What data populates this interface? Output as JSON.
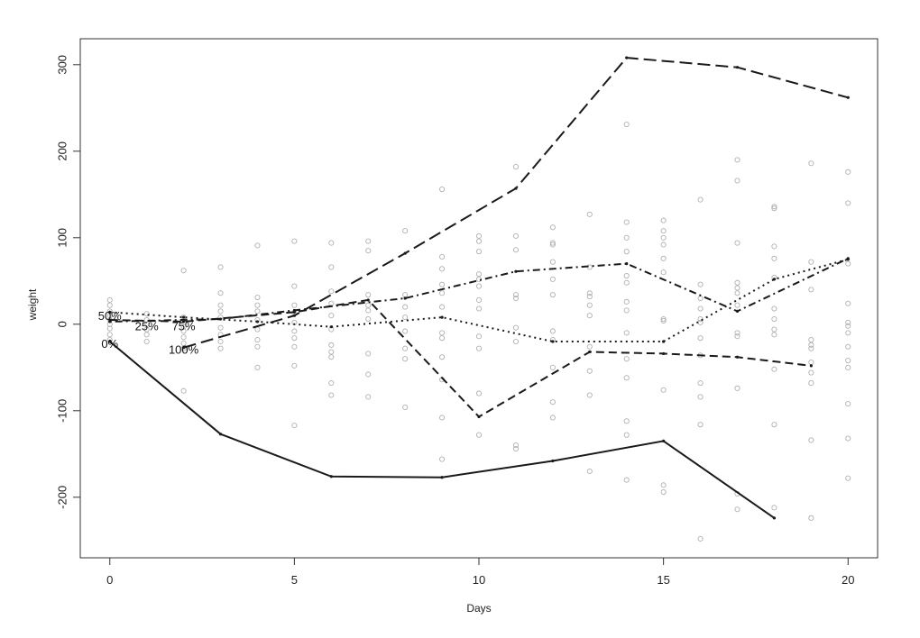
{
  "chart_data": {
    "type": "line",
    "title": "",
    "xlabel": "Days",
    "ylabel": "weight",
    "xlim": [
      -0.8,
      20.8
    ],
    "ylim": [
      -270,
      330
    ],
    "x_ticks": [
      0,
      5,
      10,
      15,
      20
    ],
    "y_ticks": [
      -200,
      -100,
      0,
      100,
      200,
      300
    ],
    "grid": false,
    "series": [
      {
        "name": "0%",
        "dash": "solid",
        "label_at": [
          0,
          -22
        ],
        "points": [
          [
            0,
            -20
          ],
          [
            3,
            -127
          ],
          [
            6,
            -176
          ],
          [
            9,
            -177
          ],
          [
            12,
            -158
          ],
          [
            15,
            -135
          ],
          [
            18,
            -224
          ]
        ]
      },
      {
        "name": "25%",
        "dash": "dash",
        "label_at": [
          1,
          -2
        ],
        "points": [
          [
            0,
            5
          ],
          [
            2,
            3
          ],
          [
            5,
            14
          ],
          [
            7,
            28
          ],
          [
            10,
            -107
          ],
          [
            13,
            -32
          ],
          [
            15,
            -34
          ],
          [
            17,
            -38
          ],
          [
            19,
            -48
          ]
        ]
      },
      {
        "name": "50%",
        "dash": "dot",
        "label_at": [
          0,
          10
        ],
        "points": [
          [
            0,
            14
          ],
          [
            2,
            8
          ],
          [
            4,
            3
          ],
          [
            6,
            -3
          ],
          [
            9,
            8
          ],
          [
            12,
            -20
          ],
          [
            15,
            -20
          ],
          [
            18,
            52
          ],
          [
            20,
            75
          ]
        ]
      },
      {
        "name": "75%",
        "dash": "dotdash",
        "label_at": [
          2,
          -2
        ],
        "points": [
          [
            0,
            3
          ],
          [
            3,
            6
          ],
          [
            5,
            16
          ],
          [
            8,
            30
          ],
          [
            11,
            61
          ],
          [
            14,
            70
          ],
          [
            17,
            15
          ],
          [
            20,
            76
          ]
        ]
      },
      {
        "name": "100%",
        "dash": "longdash",
        "label_at": [
          2,
          -29
        ],
        "points": [
          [
            2,
            -27
          ],
          [
            5,
            10
          ],
          [
            8,
            82
          ],
          [
            11,
            157
          ],
          [
            14,
            308
          ],
          [
            17,
            297
          ],
          [
            20,
            262
          ]
        ]
      }
    ],
    "scatter": {
      "color": "#b0b0b0",
      "points": [
        [
          0,
          28
        ],
        [
          0,
          22
        ],
        [
          0,
          15
        ],
        [
          0,
          10
        ],
        [
          0,
          5
        ],
        [
          0,
          0
        ],
        [
          0,
          -5
        ],
        [
          0,
          -12
        ],
        [
          0,
          -18
        ],
        [
          1,
          12
        ],
        [
          1,
          5
        ],
        [
          1,
          0
        ],
        [
          1,
          -6
        ],
        [
          1,
          -12
        ],
        [
          1,
          -20
        ],
        [
          2,
          62
        ],
        [
          2,
          8
        ],
        [
          2,
          2
        ],
        [
          2,
          -3
        ],
        [
          2,
          -8
        ],
        [
          2,
          -15
        ],
        [
          2,
          -22
        ],
        [
          2,
          -28
        ],
        [
          2,
          -77
        ],
        [
          3,
          66
        ],
        [
          3,
          36
        ],
        [
          3,
          22
        ],
        [
          3,
          15
        ],
        [
          3,
          8
        ],
        [
          3,
          -4
        ],
        [
          3,
          -12
        ],
        [
          3,
          -20
        ],
        [
          3,
          -28
        ],
        [
          4,
          91
        ],
        [
          4,
          31
        ],
        [
          4,
          22
        ],
        [
          4,
          15
        ],
        [
          4,
          5
        ],
        [
          4,
          -6
        ],
        [
          4,
          -18
        ],
        [
          4,
          -26
        ],
        [
          4,
          -50
        ],
        [
          5,
          96
        ],
        [
          5,
          44
        ],
        [
          5,
          22
        ],
        [
          5,
          13
        ],
        [
          5,
          2
        ],
        [
          5,
          -8
        ],
        [
          5,
          -16
        ],
        [
          5,
          -26
        ],
        [
          5,
          -48
        ],
        [
          5,
          -117
        ],
        [
          6,
          94
        ],
        [
          6,
          66
        ],
        [
          6,
          38
        ],
        [
          6,
          24
        ],
        [
          6,
          10
        ],
        [
          6,
          -6
        ],
        [
          6,
          -24
        ],
        [
          6,
          -32
        ],
        [
          6,
          -38
        ],
        [
          6,
          -68
        ],
        [
          6,
          -82
        ],
        [
          7,
          96
        ],
        [
          7,
          85
        ],
        [
          7,
          34
        ],
        [
          7,
          22
        ],
        [
          7,
          16
        ],
        [
          7,
          6
        ],
        [
          7,
          -34
        ],
        [
          7,
          -58
        ],
        [
          7,
          -84
        ],
        [
          8,
          108
        ],
        [
          8,
          34
        ],
        [
          8,
          20
        ],
        [
          8,
          8
        ],
        [
          8,
          -8
        ],
        [
          8,
          -28
        ],
        [
          8,
          -40
        ],
        [
          8,
          -96
        ],
        [
          9,
          156
        ],
        [
          9,
          78
        ],
        [
          9,
          64
        ],
        [
          9,
          46
        ],
        [
          9,
          36
        ],
        [
          9,
          20
        ],
        [
          9,
          -10
        ],
        [
          9,
          -16
        ],
        [
          9,
          -38
        ],
        [
          9,
          -64
        ],
        [
          9,
          -108
        ],
        [
          9,
          -156
        ],
        [
          10,
          102
        ],
        [
          10,
          96
        ],
        [
          10,
          84
        ],
        [
          10,
          58
        ],
        [
          10,
          52
        ],
        [
          10,
          44
        ],
        [
          10,
          28
        ],
        [
          10,
          18
        ],
        [
          10,
          -14
        ],
        [
          10,
          -28
        ],
        [
          10,
          -80
        ],
        [
          10,
          -128
        ],
        [
          11,
          182
        ],
        [
          11,
          102
        ],
        [
          11,
          86
        ],
        [
          11,
          34
        ],
        [
          11,
          30
        ],
        [
          11,
          -4
        ],
        [
          11,
          -20
        ],
        [
          11,
          -140
        ],
        [
          11,
          -144
        ],
        [
          12,
          112
        ],
        [
          12,
          94
        ],
        [
          12,
          92
        ],
        [
          12,
          72
        ],
        [
          12,
          52
        ],
        [
          12,
          34
        ],
        [
          12,
          -8
        ],
        [
          12,
          -18
        ],
        [
          12,
          -50
        ],
        [
          12,
          -90
        ],
        [
          12,
          -108
        ],
        [
          13,
          127
        ],
        [
          13,
          66
        ],
        [
          13,
          36
        ],
        [
          13,
          32
        ],
        [
          13,
          22
        ],
        [
          13,
          10
        ],
        [
          13,
          -26
        ],
        [
          13,
          -54
        ],
        [
          13,
          -82
        ],
        [
          13,
          -170
        ],
        [
          14,
          231
        ],
        [
          14,
          118
        ],
        [
          14,
          100
        ],
        [
          14,
          84
        ],
        [
          14,
          56
        ],
        [
          14,
          48
        ],
        [
          14,
          26
        ],
        [
          14,
          16
        ],
        [
          14,
          -10
        ],
        [
          14,
          -40
        ],
        [
          14,
          -62
        ],
        [
          14,
          -112
        ],
        [
          14,
          -128
        ],
        [
          14,
          -180
        ],
        [
          15,
          120
        ],
        [
          15,
          108
        ],
        [
          15,
          100
        ],
        [
          15,
          92
        ],
        [
          15,
          76
        ],
        [
          15,
          60
        ],
        [
          15,
          6
        ],
        [
          15,
          4
        ],
        [
          15,
          -76
        ],
        [
          15,
          -186
        ],
        [
          15,
          -194
        ],
        [
          16,
          144
        ],
        [
          16,
          46
        ],
        [
          16,
          30
        ],
        [
          16,
          18
        ],
        [
          16,
          6
        ],
        [
          16,
          2
        ],
        [
          16,
          -16
        ],
        [
          16,
          -36
        ],
        [
          16,
          -68
        ],
        [
          16,
          -84
        ],
        [
          16,
          -116
        ],
        [
          16,
          -248
        ],
        [
          17,
          190
        ],
        [
          17,
          166
        ],
        [
          17,
          94
        ],
        [
          17,
          48
        ],
        [
          17,
          42
        ],
        [
          17,
          36
        ],
        [
          17,
          22
        ],
        [
          17,
          -10
        ],
        [
          17,
          -14
        ],
        [
          17,
          -74
        ],
        [
          17,
          -196
        ],
        [
          17,
          -214
        ],
        [
          18,
          136
        ],
        [
          18,
          134
        ],
        [
          18,
          90
        ],
        [
          18,
          76
        ],
        [
          18,
          54
        ],
        [
          18,
          18
        ],
        [
          18,
          6
        ],
        [
          18,
          -6
        ],
        [
          18,
          -12
        ],
        [
          18,
          -52
        ],
        [
          18,
          -116
        ],
        [
          18,
          -212
        ],
        [
          19,
          186
        ],
        [
          19,
          72
        ],
        [
          19,
          40
        ],
        [
          19,
          -18
        ],
        [
          19,
          -24
        ],
        [
          19,
          -28
        ],
        [
          19,
          -44
        ],
        [
          19,
          -56
        ],
        [
          19,
          -68
        ],
        [
          19,
          -134
        ],
        [
          19,
          -224
        ],
        [
          20,
          176
        ],
        [
          20,
          140
        ],
        [
          20,
          70
        ],
        [
          20,
          24
        ],
        [
          20,
          2
        ],
        [
          20,
          -2
        ],
        [
          20,
          -10
        ],
        [
          20,
          -26
        ],
        [
          20,
          -42
        ],
        [
          20,
          -50
        ],
        [
          20,
          -92
        ],
        [
          20,
          -132
        ],
        [
          20,
          -178
        ]
      ]
    }
  }
}
